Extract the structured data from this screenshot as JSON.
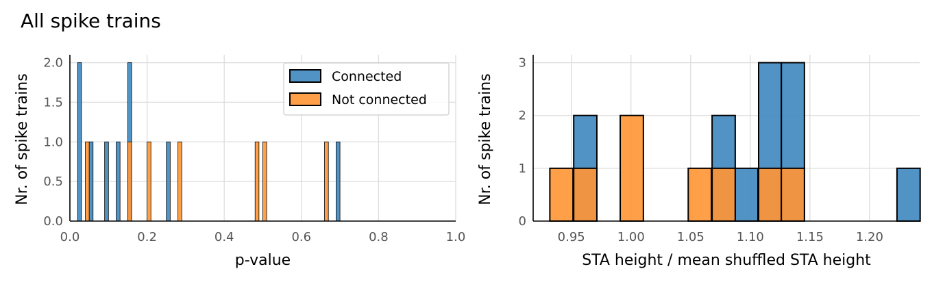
{
  "figure": {
    "title": "All spike trains"
  },
  "colors": {
    "connected": "#3f87c0",
    "not_connected": "#ff9533",
    "edge": "#000000",
    "grid": "#dddddd",
    "tick_label": "#555555"
  },
  "chart_data": [
    {
      "type": "bar",
      "subtype": "histogram",
      "xlabel": "p-value",
      "ylabel": "Nr. of spike trains",
      "xlim": [
        0,
        1.0
      ],
      "ylim": [
        0,
        2.1
      ],
      "xticks": [
        0.0,
        0.2,
        0.4,
        0.6,
        0.8,
        1.0
      ],
      "xtick_labels": [
        "0.0",
        "0.2",
        "0.4",
        "0.6",
        "0.8",
        "1.0"
      ],
      "yticks": [
        0.0,
        0.5,
        1.0,
        1.5,
        2.0
      ],
      "ytick_labels": [
        "0.0",
        "0.5",
        "1.0",
        "1.5",
        "2.0"
      ],
      "grid": true,
      "legend": "top-right",
      "bin_width": 0.01,
      "series": [
        {
          "name": "Connected",
          "bins": [
            [
              0.02,
              2
            ],
            [
              0.05,
              1
            ],
            [
              0.09,
              1
            ],
            [
              0.12,
              1
            ],
            [
              0.15,
              2
            ],
            [
              0.25,
              1
            ],
            [
              0.69,
              1
            ]
          ]
        },
        {
          "name": "Not connected",
          "bins": [
            [
              0.04,
              1
            ],
            [
              0.15,
              1
            ],
            [
              0.2,
              1
            ],
            [
              0.28,
              1
            ],
            [
              0.48,
              1
            ],
            [
              0.5,
              1
            ],
            [
              0.66,
              1
            ]
          ]
        }
      ]
    },
    {
      "type": "bar",
      "subtype": "histogram",
      "xlabel": "STA height / mean shuffled STA height",
      "ylabel": "Nr. of spike trains",
      "xlim": [
        0.918,
        1.242
      ],
      "ylim": [
        0,
        3.15
      ],
      "xticks": [
        0.95,
        1.0,
        1.05,
        1.1,
        1.15,
        1.2
      ],
      "xtick_labels": [
        "0.95",
        "1.00",
        "1.05",
        "1.10",
        "1.15",
        "1.20"
      ],
      "yticks": [
        0,
        1,
        2,
        3
      ],
      "ytick_labels": [
        "0",
        "1",
        "2",
        "3"
      ],
      "grid": true,
      "bin_width": 0.0194,
      "series": [
        {
          "name": "Connected",
          "bins": [
            [
              0.952,
              2
            ],
            [
              1.068,
              2
            ],
            [
              1.087,
              1
            ],
            [
              1.107,
              3
            ],
            [
              1.126,
              3
            ],
            [
              1.223,
              1
            ]
          ]
        },
        {
          "name": "Not connected",
          "bins": [
            [
              0.932,
              1
            ],
            [
              0.952,
              1
            ],
            [
              0.991,
              2
            ],
            [
              1.048,
              1
            ],
            [
              1.068,
              1
            ],
            [
              1.107,
              1
            ],
            [
              1.126,
              1
            ]
          ]
        }
      ]
    }
  ]
}
